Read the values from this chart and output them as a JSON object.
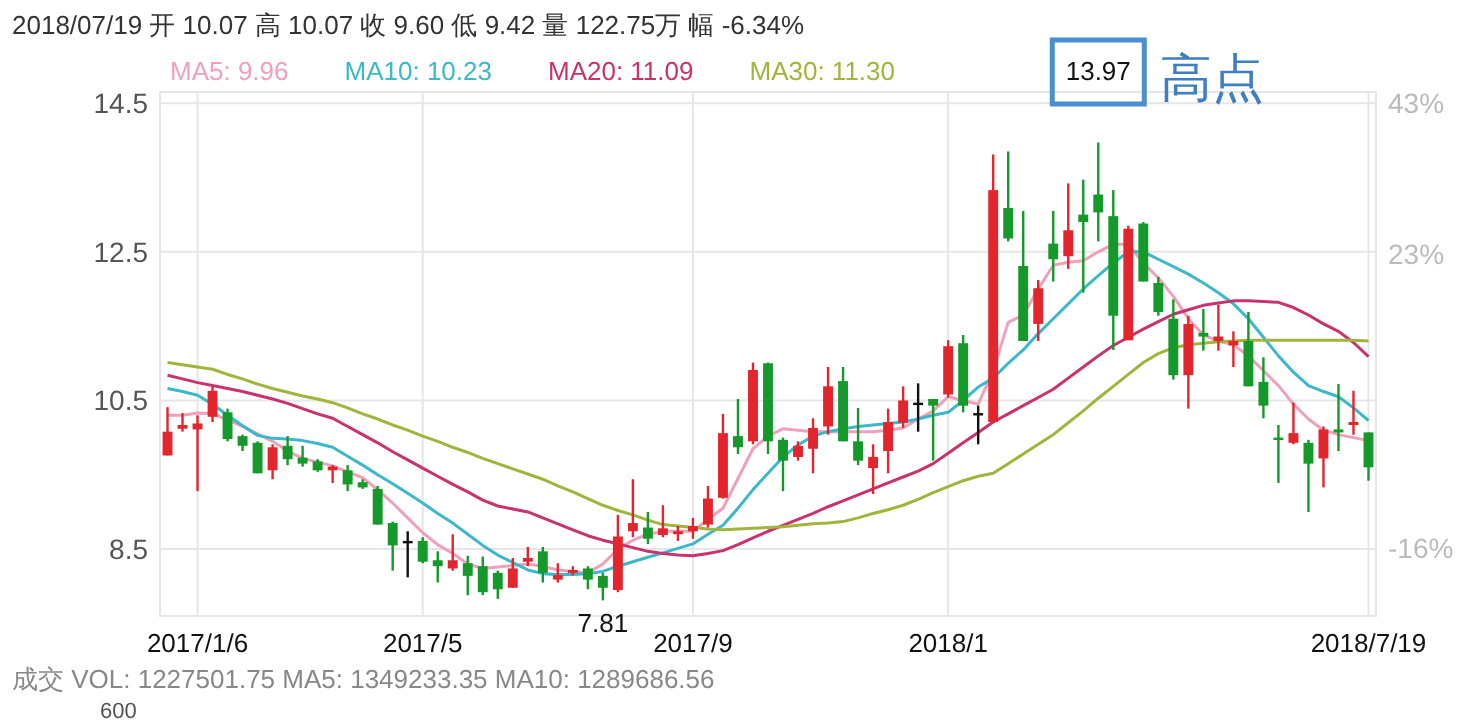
{
  "chart_data": {
    "type": "candlestick",
    "title": "2018/07/19 开 10.07 高 10.07 收 9.60 低 9.42 量 122.75万 幅 -6.34%",
    "categories": [
      null,
      null,
      "2017/1/6",
      null,
      null,
      null,
      null,
      null,
      null,
      null,
      null,
      null,
      null,
      null,
      null,
      null,
      null,
      "2017/5",
      null,
      null,
      null,
      null,
      null,
      null,
      null,
      null,
      null,
      null,
      null,
      null,
      null,
      null,
      null,
      null,
      null,
      "2017/9",
      null,
      null,
      null,
      null,
      null,
      null,
      null,
      null,
      null,
      null,
      null,
      null,
      null,
      null,
      null,
      null,
      "2018/1",
      null,
      null,
      null,
      null,
      null,
      null,
      null,
      null,
      null,
      null,
      null,
      null,
      null,
      null,
      null,
      null,
      null,
      null,
      null,
      null,
      null,
      null,
      null,
      null,
      null,
      null,
      null,
      "2018/7/19"
    ],
    "ohlc": [
      [
        9.76,
        10.41,
        9.76,
        10.08
      ],
      [
        10.12,
        10.33,
        10.08,
        10.17
      ],
      [
        10.11,
        10.3,
        9.28,
        10.19
      ],
      [
        10.28,
        10.69,
        10.21,
        10.63
      ],
      [
        10.34,
        10.39,
        9.95,
        9.98
      ],
      [
        10.02,
        10.04,
        9.82,
        9.89
      ],
      [
        9.93,
        9.95,
        9.52,
        9.52
      ],
      [
        9.56,
        9.91,
        9.44,
        9.87
      ],
      [
        9.89,
        10.02,
        9.63,
        9.71
      ],
      [
        9.73,
        9.89,
        9.61,
        9.65
      ],
      [
        9.68,
        9.71,
        9.54,
        9.56
      ],
      [
        9.56,
        9.63,
        9.39,
        9.61
      ],
      [
        9.56,
        9.63,
        9.28,
        9.37
      ],
      [
        9.4,
        9.44,
        9.31,
        9.33
      ],
      [
        9.31,
        9.35,
        8.83,
        8.83
      ],
      [
        8.85,
        8.87,
        8.21,
        8.55
      ],
      [
        8.61,
        8.74,
        8.12,
        8.61
      ],
      [
        8.61,
        8.66,
        8.31,
        8.33
      ],
      [
        8.35,
        8.47,
        8.05,
        8.27
      ],
      [
        8.24,
        8.7,
        8.21,
        8.35
      ],
      [
        8.31,
        8.41,
        7.88,
        8.14
      ],
      [
        8.27,
        8.4,
        7.88,
        7.92
      ],
      [
        8.18,
        8.21,
        7.83,
        7.96
      ],
      [
        7.98,
        8.38,
        7.98,
        8.24
      ],
      [
        8.33,
        8.53,
        8.27,
        8.38
      ],
      [
        8.47,
        8.53,
        8.05,
        8.18
      ],
      [
        8.09,
        8.31,
        8.05,
        8.15
      ],
      [
        8.18,
        8.27,
        8.15,
        8.22
      ],
      [
        8.24,
        8.27,
        7.96,
        8.09
      ],
      [
        8.14,
        8.18,
        7.81,
        7.98
      ],
      [
        7.95,
        8.96,
        7.92,
        8.67
      ],
      [
        8.74,
        9.44,
        8.66,
        8.85
      ],
      [
        8.79,
        9.0,
        8.57,
        8.64
      ],
      [
        8.69,
        9.09,
        8.66,
        8.78
      ],
      [
        8.7,
        8.81,
        8.61,
        8.74
      ],
      [
        8.74,
        8.92,
        8.64,
        8.81
      ],
      [
        8.83,
        9.35,
        8.79,
        9.18
      ],
      [
        9.19,
        10.32,
        9.18,
        10.06
      ],
      [
        10.02,
        10.52,
        9.78,
        9.87
      ],
      [
        9.95,
        11.01,
        9.91,
        10.91
      ],
      [
        11.0,
        11.01,
        9.78,
        9.95
      ],
      [
        9.97,
        10.0,
        9.28,
        9.69
      ],
      [
        9.74,
        9.95,
        9.69,
        9.89
      ],
      [
        9.85,
        10.26,
        9.52,
        10.13
      ],
      [
        10.15,
        10.95,
        10.04,
        10.69
      ],
      [
        10.76,
        10.95,
        9.95,
        9.95
      ],
      [
        9.95,
        10.4,
        9.63,
        9.69
      ],
      [
        9.59,
        9.91,
        9.24,
        9.74
      ],
      [
        9.82,
        10.39,
        9.52,
        10.21
      ],
      [
        10.2,
        10.69,
        10.13,
        10.5
      ],
      [
        10.47,
        10.73,
        10.08,
        10.47
      ],
      [
        10.52,
        10.52,
        9.69,
        10.43
      ],
      [
        10.58,
        11.31,
        10.54,
        11.23
      ],
      [
        11.27,
        11.38,
        10.34,
        10.43
      ],
      [
        10.33,
        10.43,
        9.91,
        10.33
      ],
      [
        10.21,
        13.81,
        10.2,
        13.33
      ],
      [
        13.09,
        13.85,
        12.64,
        12.68
      ],
      [
        12.31,
        13.05,
        11.3,
        11.3
      ],
      [
        11.53,
        12.12,
        11.3,
        12.01
      ],
      [
        12.61,
        13.05,
        12.1,
        12.4
      ],
      [
        12.44,
        13.42,
        12.27,
        12.79
      ],
      [
        13.0,
        13.47,
        11.95,
        12.9
      ],
      [
        13.27,
        13.97,
        12.64,
        13.03
      ],
      [
        12.98,
        13.33,
        11.18,
        11.64
      ],
      [
        11.31,
        12.85,
        11.31,
        12.81
      ],
      [
        12.88,
        12.9,
        12.1,
        12.1
      ],
      [
        12.08,
        12.16,
        11.64,
        11.69
      ],
      [
        11.6,
        11.86,
        10.78,
        10.84
      ],
      [
        10.84,
        11.64,
        10.39,
        11.53
      ],
      [
        11.41,
        11.73,
        11.17,
        11.36
      ],
      [
        11.3,
        11.79,
        11.17,
        11.36
      ],
      [
        11.24,
        11.43,
        10.95,
        11.3
      ],
      [
        11.3,
        11.69,
        10.69,
        10.69
      ],
      [
        10.75,
        11.08,
        10.26,
        10.43
      ],
      [
        10.0,
        10.17,
        9.39,
        9.97
      ],
      [
        9.93,
        10.47,
        9.91,
        10.06
      ],
      [
        9.93,
        9.97,
        9.0,
        9.65
      ],
      [
        9.72,
        10.15,
        9.33,
        10.11
      ],
      [
        10.11,
        10.72,
        9.82,
        10.07
      ],
      [
        10.17,
        10.63,
        10.04,
        10.21
      ],
      [
        10.07,
        10.07,
        9.42,
        9.6
      ]
    ],
    "colors": [
      "#e3262d",
      "#e3262d",
      "#e3262d",
      "#e3262d",
      "#14992a",
      "#14992a",
      "#14992a",
      "#e3262d",
      "#14992a",
      "#14992a",
      "#14992a",
      "#e3262d",
      "#14992a",
      "#14992a",
      "#14992a",
      "#14992a",
      "#111111",
      "#14992a",
      "#14992a",
      "#e3262d",
      "#14992a",
      "#14992a",
      "#14992a",
      "#e3262d",
      "#e3262d",
      "#14992a",
      "#e3262d",
      "#e3262d",
      "#14992a",
      "#14992a",
      "#e3262d",
      "#e3262d",
      "#14992a",
      "#e3262d",
      "#e3262d",
      "#e3262d",
      "#e3262d",
      "#e3262d",
      "#14992a",
      "#e3262d",
      "#14992a",
      "#14992a",
      "#e3262d",
      "#e3262d",
      "#e3262d",
      "#14992a",
      "#14992a",
      "#e3262d",
      "#e3262d",
      "#e3262d",
      "#111111",
      "#14992a",
      "#e3262d",
      "#14992a",
      "#111111",
      "#e3262d",
      "#14992a",
      "#14992a",
      "#e3262d",
      "#14992a",
      "#e3262d",
      "#14992a",
      "#14992a",
      "#14992a",
      "#e3262d",
      "#14992a",
      "#14992a",
      "#14992a",
      "#e3262d",
      "#14992a",
      "#e3262d",
      "#e3262d",
      "#14992a",
      "#14992a",
      "#14992a",
      "#e3262d",
      "#14992a",
      "#e3262d",
      "#14992a",
      "#e3262d",
      "#14992a"
    ],
    "series": [
      {
        "name": "MA5: 9.96",
        "type": "line",
        "color": "#f0a0bb",
        "values": [
          10.3,
          10.3,
          10.33,
          10.32,
          10.24,
          10.15,
          10.05,
          9.95,
          9.82,
          9.72,
          9.67,
          9.62,
          9.54,
          9.46,
          9.3,
          9.12,
          8.92,
          8.72,
          8.56,
          8.44,
          8.3,
          8.24,
          8.26,
          8.28,
          8.3,
          8.27,
          8.22,
          8.2,
          8.18,
          8.3,
          8.5,
          8.62,
          8.7,
          8.74,
          8.74,
          8.74,
          8.9,
          9.05,
          9.45,
          9.85,
          10.02,
          10.12,
          10.1,
          10.08,
          10.08,
          10.08,
          10.08,
          10.08,
          10.1,
          10.13,
          10.25,
          10.36,
          10.55,
          10.5,
          10.45,
          10.9,
          11.55,
          11.65,
          12.0,
          12.32,
          12.36,
          12.38,
          12.5,
          12.6,
          12.6,
          12.35,
          12.15,
          11.9,
          11.6,
          11.38,
          11.3,
          11.25,
          11.1,
          10.9,
          10.7,
          10.45,
          10.25,
          10.1,
          10.04,
          10.0,
          9.96
        ]
      },
      {
        "name": "MA10: 10.23",
        "type": "line",
        "color": "#3cb8c8",
        "values": [
          10.66,
          10.62,
          10.57,
          10.45,
          10.3,
          10.16,
          10.03,
          9.99,
          9.98,
          9.96,
          9.92,
          9.87,
          9.75,
          9.63,
          9.5,
          9.38,
          9.25,
          9.12,
          8.98,
          8.85,
          8.7,
          8.55,
          8.42,
          8.32,
          8.22,
          8.17,
          8.16,
          8.16,
          8.17,
          8.2,
          8.27,
          8.33,
          8.39,
          8.45,
          8.51,
          8.57,
          8.7,
          8.82,
          9.05,
          9.3,
          9.52,
          9.74,
          9.9,
          10.02,
          10.08,
          10.12,
          10.15,
          10.17,
          10.19,
          10.21,
          10.25,
          10.3,
          10.34,
          10.5,
          10.68,
          10.8,
          11.0,
          11.18,
          11.4,
          11.6,
          11.8,
          12.0,
          12.18,
          12.35,
          12.5,
          12.5,
          12.4,
          12.3,
          12.2,
          12.08,
          11.95,
          11.8,
          11.6,
          11.35,
          11.1,
          10.88,
          10.7,
          10.62,
          10.55,
          10.4,
          10.23
        ]
      },
      {
        "name": "MA20: 11.09",
        "type": "line",
        "color": "#c8326e",
        "values": [
          10.84,
          10.79,
          10.74,
          10.7,
          10.66,
          10.62,
          10.57,
          10.52,
          10.46,
          10.39,
          10.32,
          10.26,
          10.15,
          10.04,
          9.93,
          9.81,
          9.7,
          9.59,
          9.48,
          9.37,
          9.27,
          9.16,
          9.08,
          9.04,
          9.0,
          8.92,
          8.84,
          8.76,
          8.68,
          8.62,
          8.57,
          8.52,
          8.47,
          8.44,
          8.42,
          8.41,
          8.44,
          8.48,
          8.56,
          8.65,
          8.74,
          8.82,
          8.9,
          8.98,
          9.07,
          9.15,
          9.23,
          9.31,
          9.39,
          9.47,
          9.55,
          9.65,
          9.79,
          9.93,
          10.07,
          10.21,
          10.32,
          10.43,
          10.54,
          10.65,
          10.8,
          10.95,
          11.1,
          11.24,
          11.35,
          11.46,
          11.56,
          11.66,
          11.72,
          11.78,
          11.81,
          11.84,
          11.84,
          11.83,
          11.82,
          11.75,
          11.65,
          11.53,
          11.43,
          11.28,
          11.09
        ]
      },
      {
        "name": "MA30: 11.30",
        "type": "line",
        "color": "#a2b43c",
        "values": [
          11.01,
          10.98,
          10.95,
          10.92,
          10.85,
          10.79,
          10.72,
          10.66,
          10.61,
          10.56,
          10.52,
          10.47,
          10.4,
          10.32,
          10.25,
          10.17,
          10.1,
          10.02,
          9.95,
          9.87,
          9.8,
          9.72,
          9.65,
          9.58,
          9.51,
          9.44,
          9.35,
          9.27,
          9.18,
          9.09,
          9.02,
          8.96,
          8.89,
          8.83,
          8.81,
          8.79,
          8.77,
          8.76,
          8.77,
          8.78,
          8.79,
          8.8,
          8.82,
          8.84,
          8.85,
          8.87,
          8.92,
          8.98,
          9.03,
          9.09,
          9.17,
          9.26,
          9.34,
          9.42,
          9.48,
          9.52,
          9.65,
          9.78,
          9.91,
          10.04,
          10.2,
          10.36,
          10.53,
          10.69,
          10.85,
          11.01,
          11.13,
          11.21,
          11.25,
          11.27,
          11.29,
          11.3,
          11.31,
          11.31,
          11.31,
          11.31,
          11.31,
          11.31,
          11.31,
          11.31,
          11.3
        ]
      }
    ],
    "ylim": [
      7.6,
      14.65
    ],
    "yticks": [
      8.5,
      10.5,
      12.5,
      14.5
    ],
    "y2lim": [
      -25.0,
      44.5
    ],
    "y2ticks": [
      {
        "value": 43,
        "label": "43%"
      },
      {
        "value": 23,
        "label": "23%"
      },
      {
        "value": -16,
        "label": "-16%"
      }
    ],
    "grid": true,
    "legend": "top",
    "annotations": [
      {
        "text": "13.97",
        "y": 13.97
      },
      "高点",
      {
        "text": "7.81",
        "y": 7.81
      },
      "成交 VOL: 1227501.75 MA5: 1349233.35 MA10: 1289686.56",
      "600"
    ]
  }
}
